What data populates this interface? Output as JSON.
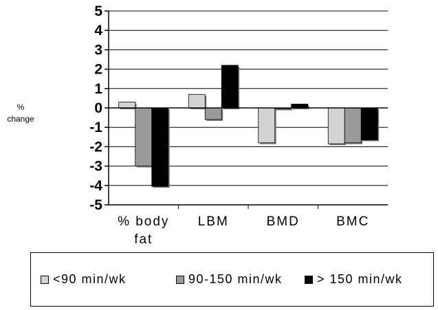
{
  "chart_data": {
    "type": "bar",
    "categories": [
      "% body fat",
      "LBM",
      "BMD",
      "BMC"
    ],
    "category_lines": [
      [
        "%  body",
        "fat"
      ],
      [
        "LBM"
      ],
      [
        "BMD"
      ],
      [
        "BMC"
      ]
    ],
    "series": [
      {
        "name": "<90 min/wk",
        "color": "#d3d3d3",
        "values": [
          0.3,
          0.7,
          -1.8,
          -1.85
        ]
      },
      {
        "name": "90-150 min/wk",
        "color": "#9a9a9a",
        "values": [
          -3.0,
          -0.6,
          0.0,
          -1.8
        ]
      },
      {
        "name": "> 150 min/wk",
        "color": "#000000",
        "values": [
          -4.05,
          2.2,
          0.2,
          -1.65
        ]
      }
    ],
    "ylabel": "%\nchange",
    "ylim": [
      -5,
      5
    ],
    "yticks": [
      "5",
      "4",
      "3",
      "2",
      "1",
      "0",
      "-1",
      "-2",
      "-3",
      "-4",
      "-5"
    ],
    "grid": true,
    "legend_placement": "bottom"
  }
}
